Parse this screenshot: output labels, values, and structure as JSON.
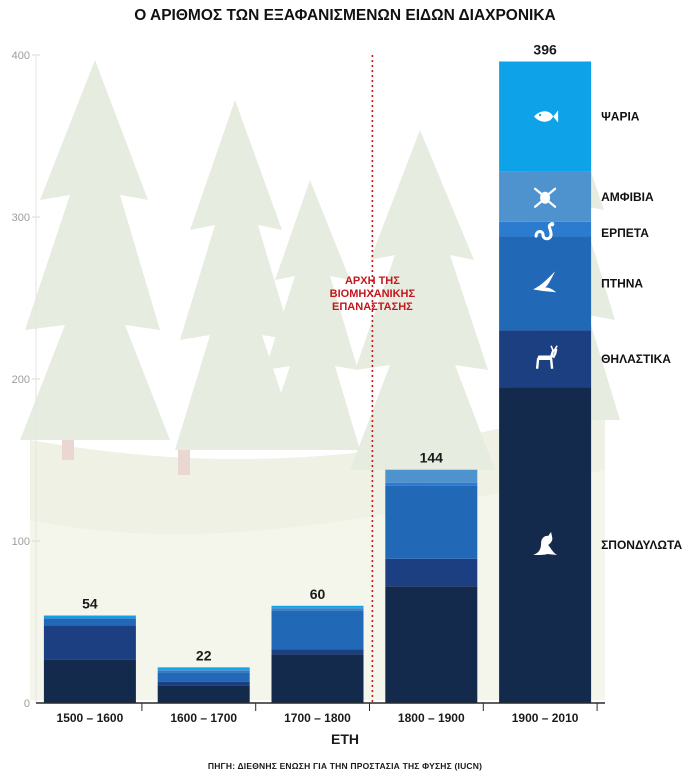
{
  "chart_data": {
    "type": "bar",
    "stacked": true,
    "title": "Ο ΑΡΙΘΜΟΣ ΤΩΝ ΕΞΑΦΑΝΙΣΜΕΝΩΝ ΕΙΔΩΝ ΔΙΑΧΡΟΝΙΚΑ",
    "xlabel": "ΕΤΗ",
    "ylabel": "",
    "ylim": [
      0,
      400
    ],
    "yticks": [
      0,
      100,
      200,
      300,
      400
    ],
    "grid": false,
    "categories": [
      "1500 – 1600",
      "1600 – 1700",
      "1700 – 1800",
      "1800 – 1900",
      "1900 – 2010"
    ],
    "totals": [
      54,
      22,
      60,
      144,
      396
    ],
    "series": [
      {
        "name": "ΣΠΟΝΔΥΛΩΤΑ",
        "color": "#142a4d",
        "icon": "kangaroo-icon",
        "values": [
          27,
          11,
          30,
          72,
          195
        ]
      },
      {
        "name": "ΘΗΛΑΣΤΙΚΑ",
        "color": "#1b3f80",
        "icon": "deer-icon",
        "values": [
          21,
          2,
          3,
          17,
          35
        ]
      },
      {
        "name": "ΠΤΗΝΑ",
        "color": "#2168b7",
        "icon": "bird-icon",
        "values": [
          4,
          6,
          24,
          45,
          58
        ]
      },
      {
        "name": "ΕΡΠΕΤΑ",
        "color": "#2b7ccf",
        "icon": "snake-icon",
        "values": [
          1,
          1,
          1,
          2,
          9
        ]
      },
      {
        "name": "ΑΜΦΙΒΙΑ",
        "color": "#4f93ce",
        "icon": "frog-icon",
        "values": [
          0,
          1,
          1,
          8,
          31
        ]
      },
      {
        "name": "ΨΑΡΙΑ",
        "color": "#0ea3e8",
        "icon": "fish-icon",
        "values": [
          1,
          1,
          1,
          0,
          68
        ]
      }
    ],
    "annotation": {
      "lines": [
        "ΑΡΧΗ ΤΗΣ",
        "ΒΙΟΜΗΧΑΝΙΚΗΣ",
        "ΕΠΑΝΑΣΤΑΣΗΣ"
      ],
      "color": "#c4171d"
    },
    "source": "ΠΗΓΗ: ΔΙΕΘΝΗΣ ΕΝΩΣΗ ΓΙΑ ΤΗΝ ΠΡΟΣΤΑΣΙΑ ΤΗΣ ΦΥΣΗΣ (IUCN)"
  }
}
